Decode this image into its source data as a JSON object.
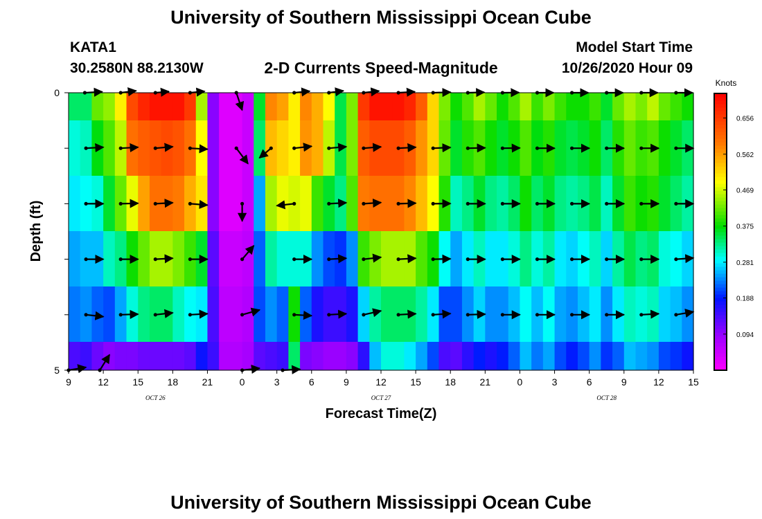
{
  "header": {
    "title_top": "University of Southern Mississippi Ocean Cube",
    "title_bottom": "University of Southern Mississippi Ocean Cube",
    "station": "KATA1",
    "coords": "30.2580N 88.2130W",
    "subtitle": "2-D Currents Speed-Magnitude",
    "model_label": "Model Start Time",
    "model_time": "10/26/2020 Hour 09"
  },
  "chart_data": {
    "type": "heatmap",
    "title": "2-D Currents Speed-Magnitude",
    "xlabel": "Forecast Time(Z)",
    "ylabel": "Depth (ft)",
    "colorbar_label": "Knots",
    "x_hours": [
      0,
      54
    ],
    "x_tick_labels": [
      "9",
      "12",
      "15",
      "18",
      "21",
      "0",
      "3",
      "6",
      "9",
      "12",
      "15",
      "18",
      "21",
      "0",
      "3",
      "6",
      "9",
      "12",
      "15"
    ],
    "date_labels": [
      {
        "text": "OCT 26",
        "hour": 7.5
      },
      {
        "text": "OCT 27",
        "hour": 27
      },
      {
        "text": "OCT 28",
        "hour": 46.5
      }
    ],
    "y_tick_labels": [
      "0",
      "5"
    ],
    "ylim": [
      0,
      5
    ],
    "colorbar_ticks": [
      0.094,
      0.188,
      0.281,
      0.375,
      0.469,
      0.562,
      0.656
    ],
    "colorbar_tick_labels": [
      "0.094",
      "0.188",
      "0.281",
      "0.375",
      "0.469",
      "0.562",
      "0.656"
    ],
    "crange": [
      0.0,
      0.72
    ],
    "layers": [
      [
        0.34,
        0.34,
        0.42,
        0.44,
        0.5,
        0.64,
        0.68,
        0.7,
        0.7,
        0.7,
        0.66,
        0.45,
        0.1,
        0.03,
        0.03,
        0.05,
        0.36,
        0.58,
        0.56,
        0.5,
        0.58,
        0.55,
        0.49,
        0.35,
        0.43,
        0.66,
        0.7,
        0.7,
        0.7,
        0.68,
        0.62,
        0.52,
        0.43,
        0.38,
        0.41,
        0.45,
        0.42,
        0.38,
        0.41,
        0.45,
        0.4,
        0.43,
        0.4,
        0.38,
        0.38,
        0.4,
        0.36,
        0.42,
        0.45,
        0.43,
        0.46,
        0.42,
        0.4,
        0.38
      ],
      [
        0.3,
        0.31,
        0.37,
        0.41,
        0.46,
        0.6,
        0.62,
        0.63,
        0.64,
        0.63,
        0.6,
        0.49,
        0.1,
        0.03,
        0.03,
        0.05,
        0.34,
        0.54,
        0.52,
        0.5,
        0.57,
        0.55,
        0.46,
        0.35,
        0.43,
        0.62,
        0.64,
        0.64,
        0.64,
        0.62,
        0.57,
        0.52,
        0.42,
        0.36,
        0.39,
        0.41,
        0.38,
        0.36,
        0.38,
        0.41,
        0.37,
        0.39,
        0.36,
        0.35,
        0.36,
        0.38,
        0.34,
        0.39,
        0.42,
        0.4,
        0.41,
        0.38,
        0.36,
        0.34
      ],
      [
        0.28,
        0.29,
        0.3,
        0.36,
        0.42,
        0.48,
        0.56,
        0.6,
        0.6,
        0.59,
        0.55,
        0.51,
        0.1,
        0.03,
        0.03,
        0.05,
        0.25,
        0.45,
        0.48,
        0.47,
        0.48,
        0.4,
        0.36,
        0.33,
        0.41,
        0.59,
        0.6,
        0.6,
        0.6,
        0.58,
        0.54,
        0.49,
        0.39,
        0.31,
        0.33,
        0.36,
        0.33,
        0.32,
        0.34,
        0.38,
        0.34,
        0.36,
        0.33,
        0.32,
        0.33,
        0.35,
        0.31,
        0.36,
        0.4,
        0.38,
        0.39,
        0.36,
        0.34,
        0.32
      ],
      [
        0.25,
        0.26,
        0.26,
        0.31,
        0.33,
        0.38,
        0.42,
        0.45,
        0.45,
        0.43,
        0.4,
        0.36,
        0.13,
        0.05,
        0.05,
        0.06,
        0.22,
        0.32,
        0.3,
        0.3,
        0.3,
        0.24,
        0.21,
        0.2,
        0.24,
        0.4,
        0.43,
        0.45,
        0.45,
        0.45,
        0.41,
        0.38,
        0.29,
        0.25,
        0.28,
        0.31,
        0.28,
        0.28,
        0.3,
        0.33,
        0.3,
        0.32,
        0.28,
        0.27,
        0.29,
        0.31,
        0.27,
        0.32,
        0.35,
        0.33,
        0.34,
        0.3,
        0.29,
        0.27
      ],
      [
        0.23,
        0.24,
        0.22,
        0.21,
        0.25,
        0.3,
        0.33,
        0.34,
        0.34,
        0.31,
        0.29,
        0.28,
        0.14,
        0.06,
        0.06,
        0.07,
        0.21,
        0.24,
        0.22,
        0.38,
        0.22,
        0.17,
        0.15,
        0.15,
        0.17,
        0.27,
        0.32,
        0.34,
        0.34,
        0.34,
        0.32,
        0.28,
        0.21,
        0.21,
        0.24,
        0.27,
        0.24,
        0.24,
        0.26,
        0.29,
        0.26,
        0.29,
        0.25,
        0.24,
        0.26,
        0.28,
        0.24,
        0.28,
        0.31,
        0.3,
        0.31,
        0.27,
        0.26,
        0.24
      ],
      [
        0.14,
        0.15,
        0.12,
        0.1,
        0.11,
        0.11,
        0.12,
        0.12,
        0.12,
        0.12,
        0.13,
        0.18,
        0.15,
        0.07,
        0.07,
        0.08,
        0.13,
        0.14,
        0.15,
        0.34,
        0.11,
        0.1,
        0.09,
        0.09,
        0.1,
        0.16,
        0.26,
        0.3,
        0.3,
        0.28,
        0.25,
        0.21,
        0.14,
        0.13,
        0.16,
        0.19,
        0.17,
        0.19,
        0.22,
        0.26,
        0.23,
        0.25,
        0.21,
        0.19,
        0.21,
        0.24,
        0.2,
        0.22,
        0.26,
        0.25,
        0.24,
        0.21,
        0.2,
        0.18
      ]
    ],
    "vectors": [
      {
        "depth": 0,
        "pts": [
          {
            "h": 1.4,
            "u": 0.9,
            "v": 0.05
          },
          {
            "h": 4.5,
            "u": 0.8,
            "v": 0.1
          },
          {
            "h": 7.5,
            "u": 0.7,
            "v": 0.06
          },
          {
            "h": 10.5,
            "u": 0.75,
            "v": 0.07
          },
          {
            "h": 14.5,
            "u": 0.3,
            "v": -0.9
          },
          {
            "h": 19.5,
            "u": 0.8,
            "v": 0.08
          },
          {
            "h": 22.5,
            "u": 0.75,
            "v": 0.1
          },
          {
            "h": 25.5,
            "u": 0.8,
            "v": 0.09
          },
          {
            "h": 28.5,
            "u": 0.85,
            "v": 0.05
          },
          {
            "h": 31.5,
            "u": 0.9,
            "v": 0.03
          },
          {
            "h": 34.5,
            "u": 0.85,
            "v": 0.02
          },
          {
            "h": 37.5,
            "u": 0.85,
            "v": 0.01
          },
          {
            "h": 40.5,
            "u": 0.85,
            "v": 0.0
          },
          {
            "h": 43.5,
            "u": 0.85,
            "v": 0.0
          },
          {
            "h": 46.5,
            "u": 0.85,
            "v": 0.0
          },
          {
            "h": 49.5,
            "u": 0.85,
            "v": 0.0
          },
          {
            "h": 52.5,
            "u": 0.85,
            "v": 0.0
          }
        ]
      },
      {
        "depth": 1,
        "pts": [
          {
            "h": 1.5,
            "u": 0.9,
            "v": 0.05
          },
          {
            "h": 4.5,
            "u": 0.9,
            "v": 0.05
          },
          {
            "h": 7.5,
            "u": 0.9,
            "v": 0.08
          },
          {
            "h": 10.5,
            "u": 0.9,
            "v": -0.05
          },
          {
            "h": 14.5,
            "u": 0.6,
            "v": -0.8
          },
          {
            "h": 17.5,
            "u": -0.6,
            "v": -0.5
          },
          {
            "h": 19.5,
            "u": 0.9,
            "v": 0.1
          },
          {
            "h": 22.5,
            "u": 0.9,
            "v": 0.08
          },
          {
            "h": 25.5,
            "u": 0.9,
            "v": 0.07
          },
          {
            "h": 28.5,
            "u": 0.9,
            "v": 0.05
          },
          {
            "h": 31.5,
            "u": 0.9,
            "v": 0.04
          },
          {
            "h": 34.5,
            "u": 0.9,
            "v": 0.02
          },
          {
            "h": 37.5,
            "u": 0.9,
            "v": 0.01
          },
          {
            "h": 40.5,
            "u": 0.9,
            "v": 0.0
          },
          {
            "h": 43.5,
            "u": 0.9,
            "v": 0.0
          },
          {
            "h": 46.5,
            "u": 0.9,
            "v": 0.0
          },
          {
            "h": 49.5,
            "u": 0.9,
            "v": 0.0
          },
          {
            "h": 52.5,
            "u": 0.9,
            "v": 0.0
          }
        ]
      },
      {
        "depth": 2,
        "pts": [
          {
            "h": 1.5,
            "u": 0.9,
            "v": 0.0
          },
          {
            "h": 4.5,
            "u": 0.9,
            "v": 0.02
          },
          {
            "h": 7.5,
            "u": 0.9,
            "v": 0.05
          },
          {
            "h": 10.5,
            "u": 0.9,
            "v": -0.07
          },
          {
            "h": 15.0,
            "u": 0.0,
            "v": -0.9
          },
          {
            "h": 19.5,
            "u": -0.9,
            "v": -0.1
          },
          {
            "h": 22.5,
            "u": 0.9,
            "v": 0.05
          },
          {
            "h": 25.5,
            "u": 0.9,
            "v": 0.06
          },
          {
            "h": 28.5,
            "u": 0.9,
            "v": 0.03
          },
          {
            "h": 31.5,
            "u": 0.9,
            "v": 0.01
          },
          {
            "h": 34.5,
            "u": 0.9,
            "v": 0.0
          },
          {
            "h": 37.5,
            "u": 0.9,
            "v": 0.0
          },
          {
            "h": 40.5,
            "u": 0.9,
            "v": 0.0
          },
          {
            "h": 43.5,
            "u": 0.9,
            "v": 0.0
          },
          {
            "h": 46.5,
            "u": 0.9,
            "v": 0.0
          },
          {
            "h": 49.5,
            "u": 0.9,
            "v": 0.0
          },
          {
            "h": 52.5,
            "u": 0.9,
            "v": 0.0
          }
        ]
      },
      {
        "depth": 3,
        "pts": [
          {
            "h": 1.5,
            "u": 0.9,
            "v": 0.0
          },
          {
            "h": 4.5,
            "u": 0.9,
            "v": 0.0
          },
          {
            "h": 7.5,
            "u": 0.9,
            "v": 0.05
          },
          {
            "h": 10.5,
            "u": 0.9,
            "v": 0.0
          },
          {
            "h": 15.0,
            "u": 0.6,
            "v": 0.7
          },
          {
            "h": 19.5,
            "u": 0.9,
            "v": 0.0
          },
          {
            "h": 22.5,
            "u": 0.9,
            "v": 0.05
          },
          {
            "h": 25.5,
            "u": 0.9,
            "v": 0.1
          },
          {
            "h": 28.5,
            "u": 0.9,
            "v": 0.05
          },
          {
            "h": 31.5,
            "u": 0.9,
            "v": 0.02
          },
          {
            "h": 34.5,
            "u": 0.9,
            "v": 0.0
          },
          {
            "h": 37.5,
            "u": 0.9,
            "v": 0.0
          },
          {
            "h": 40.5,
            "u": 0.9,
            "v": 0.0
          },
          {
            "h": 43.5,
            "u": 0.9,
            "v": 0.0
          },
          {
            "h": 46.5,
            "u": 0.9,
            "v": 0.0
          },
          {
            "h": 49.5,
            "u": 0.9,
            "v": 0.0
          },
          {
            "h": 52.5,
            "u": 0.9,
            "v": 0.06
          }
        ]
      },
      {
        "depth": 4,
        "pts": [
          {
            "h": 1.5,
            "u": 0.9,
            "v": -0.1
          },
          {
            "h": 4.5,
            "u": 0.9,
            "v": 0.03
          },
          {
            "h": 7.5,
            "u": 0.9,
            "v": 0.1
          },
          {
            "h": 10.5,
            "u": 0.9,
            "v": 0.05
          },
          {
            "h": 15.0,
            "u": 0.9,
            "v": 0.25
          },
          {
            "h": 19.5,
            "u": 0.9,
            "v": -0.05
          },
          {
            "h": 22.5,
            "u": 0.9,
            "v": 0.05
          },
          {
            "h": 25.5,
            "u": 0.9,
            "v": 0.2
          },
          {
            "h": 28.5,
            "u": 0.9,
            "v": 0.05
          },
          {
            "h": 31.5,
            "u": 0.9,
            "v": 0.06
          },
          {
            "h": 34.5,
            "u": 0.9,
            "v": 0.03
          },
          {
            "h": 37.5,
            "u": 0.9,
            "v": 0.0
          },
          {
            "h": 40.5,
            "u": 0.9,
            "v": 0.0
          },
          {
            "h": 43.5,
            "u": 0.9,
            "v": 0.0
          },
          {
            "h": 46.5,
            "u": 0.9,
            "v": 0.0
          },
          {
            "h": 49.5,
            "u": 0.9,
            "v": 0.05
          },
          {
            "h": 52.5,
            "u": 0.9,
            "v": 0.15
          }
        ]
      },
      {
        "depth": 5,
        "pts": [
          {
            "h": 0.0,
            "u": 0.9,
            "v": 0.15
          },
          {
            "h": 2.7,
            "u": 0.5,
            "v": 0.8
          },
          {
            "h": 15.0,
            "u": 0.9,
            "v": 0.1
          },
          {
            "h": 18.5,
            "u": 0.9,
            "v": 0.05
          }
        ]
      }
    ]
  }
}
